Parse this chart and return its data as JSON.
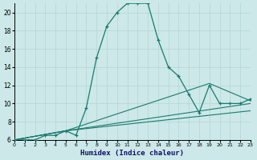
{
  "xlabel": "Humidex (Indice chaleur)",
  "xlim": [
    0,
    23
  ],
  "ylim": [
    6,
    21
  ],
  "yticks": [
    6,
    8,
    10,
    12,
    14,
    16,
    18,
    20
  ],
  "xticks": [
    0,
    1,
    2,
    3,
    4,
    5,
    6,
    7,
    8,
    9,
    10,
    11,
    12,
    13,
    14,
    15,
    16,
    17,
    18,
    19,
    20,
    21,
    22,
    23
  ],
  "bg_color": "#cce8e8",
  "grid_color": "#b8d8d8",
  "line_color": "#1a7a6e",
  "line1_x": [
    0,
    1,
    2,
    3,
    4,
    5,
    6,
    7,
    8,
    9,
    10,
    11,
    12,
    13,
    14,
    15,
    16,
    17,
    18,
    19,
    20,
    21,
    22,
    23
  ],
  "line1_y": [
    6,
    6,
    6,
    6.5,
    6.5,
    7,
    6.5,
    9.5,
    15,
    18.5,
    20,
    21,
    21,
    21,
    17,
    14,
    13,
    11,
    9,
    12,
    10,
    10,
    10,
    10.5
  ],
  "line2_x": [
    0,
    5,
    19,
    23
  ],
  "line2_y": [
    6,
    7,
    12.2,
    10.3
  ],
  "line3_x": [
    0,
    5,
    23
  ],
  "line3_y": [
    6,
    7,
    10.0
  ],
  "line4_x": [
    0,
    5,
    23
  ],
  "line4_y": [
    6,
    7,
    9.2
  ]
}
